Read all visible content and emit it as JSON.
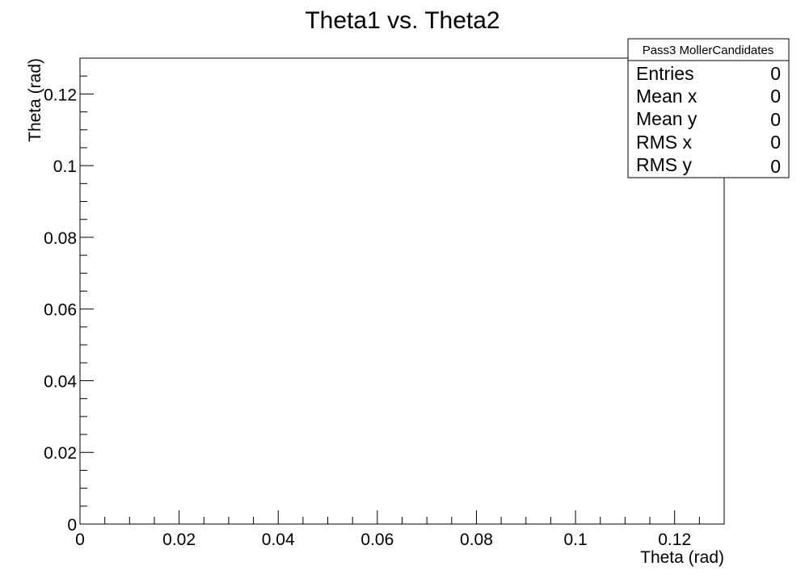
{
  "chart_data": {
    "type": "scatter",
    "title": "Theta1 vs. Theta2",
    "xlabel": "Theta (rad)",
    "ylabel": "Theta (rad)",
    "xlim": [
      0,
      0.13
    ],
    "ylim": [
      0,
      0.13
    ],
    "x_ticks": [
      0,
      0.02,
      0.04,
      0.06,
      0.08,
      0.1,
      0.12
    ],
    "x_tick_labels": [
      "0",
      "0.02",
      "0.04",
      "0.06",
      "0.08",
      "0.1",
      "0.12"
    ],
    "y_ticks": [
      0,
      0.02,
      0.04,
      0.06,
      0.08,
      0.1,
      0.12
    ],
    "y_tick_labels": [
      "0",
      "0.02",
      "0.04",
      "0.06",
      "0.08",
      "0.1",
      "0.12"
    ],
    "x": [],
    "y": [],
    "grid": false,
    "stats_box": {
      "title": "Pass3 MollerCandidates",
      "rows": [
        {
          "label": "Entries",
          "value": "0"
        },
        {
          "label": "Mean x",
          "value": "0"
        },
        {
          "label": "Mean y",
          "value": "0"
        },
        {
          "label": "RMS x",
          "value": "0"
        },
        {
          "label": "RMS y",
          "value": "0"
        }
      ],
      "placement": "top-right"
    }
  }
}
